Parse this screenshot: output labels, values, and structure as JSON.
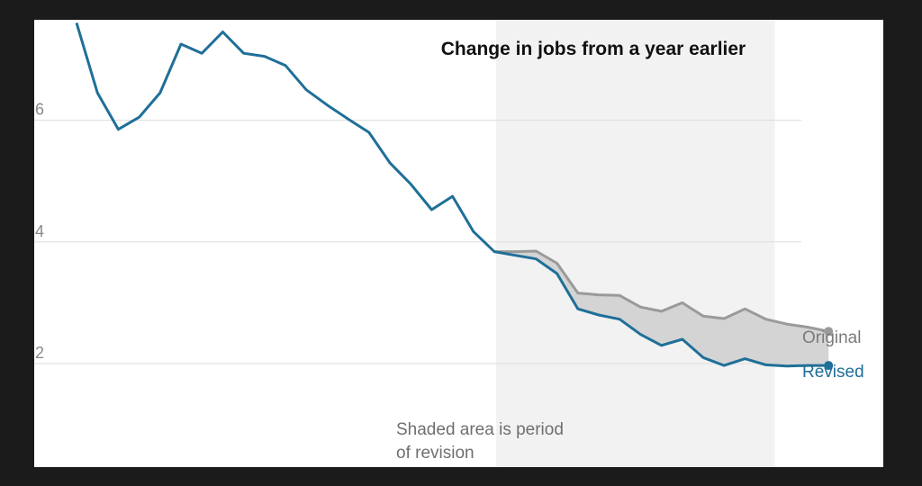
{
  "chart_data": {
    "type": "line",
    "title": "Change in jobs from a year earlier",
    "xlabel": "",
    "ylabel": "",
    "ylim": [
      0.3,
      7.65
    ],
    "yticks": [
      2,
      4,
      6
    ],
    "ytick_labels": [
      "2",
      "4",
      "6"
    ],
    "grid": true,
    "series": [
      {
        "name": "Original",
        "color": "#9a9a9a",
        "values": [
          null,
          null,
          null,
          null,
          null,
          null,
          null,
          null,
          null,
          null,
          null,
          null,
          null,
          null,
          null,
          null,
          null,
          null,
          null,
          null,
          3.84,
          3.84,
          3.85,
          3.65,
          3.16,
          3.13,
          3.12,
          2.93,
          2.86,
          3.0,
          2.78,
          2.74,
          2.9,
          2.73,
          2.65,
          2.6,
          2.53
        ]
      },
      {
        "name": "Revised",
        "color": "#1f6f98",
        "values": [
          7.6,
          6.45,
          5.85,
          6.05,
          6.45,
          7.25,
          7.1,
          7.45,
          7.1,
          7.05,
          6.9,
          6.5,
          6.25,
          6.02,
          5.8,
          5.3,
          4.95,
          4.53,
          4.75,
          4.17,
          3.84,
          3.78,
          3.72,
          3.48,
          2.9,
          2.8,
          2.73,
          2.48,
          2.3,
          2.4,
          2.1,
          1.97,
          2.08,
          1.98,
          1.96,
          1.97,
          1.97
        ]
      }
    ],
    "shaded_region": {
      "from_index": 20,
      "to_index": 33
    },
    "annotation": [
      "Shaded area is period",
      "of revision"
    ],
    "series_label_original": "Original",
    "series_label_revised": "Revised",
    "colors": {
      "shade": "#f2f2f2",
      "band": "#d4d4d4",
      "grid": "#dddddd"
    }
  }
}
